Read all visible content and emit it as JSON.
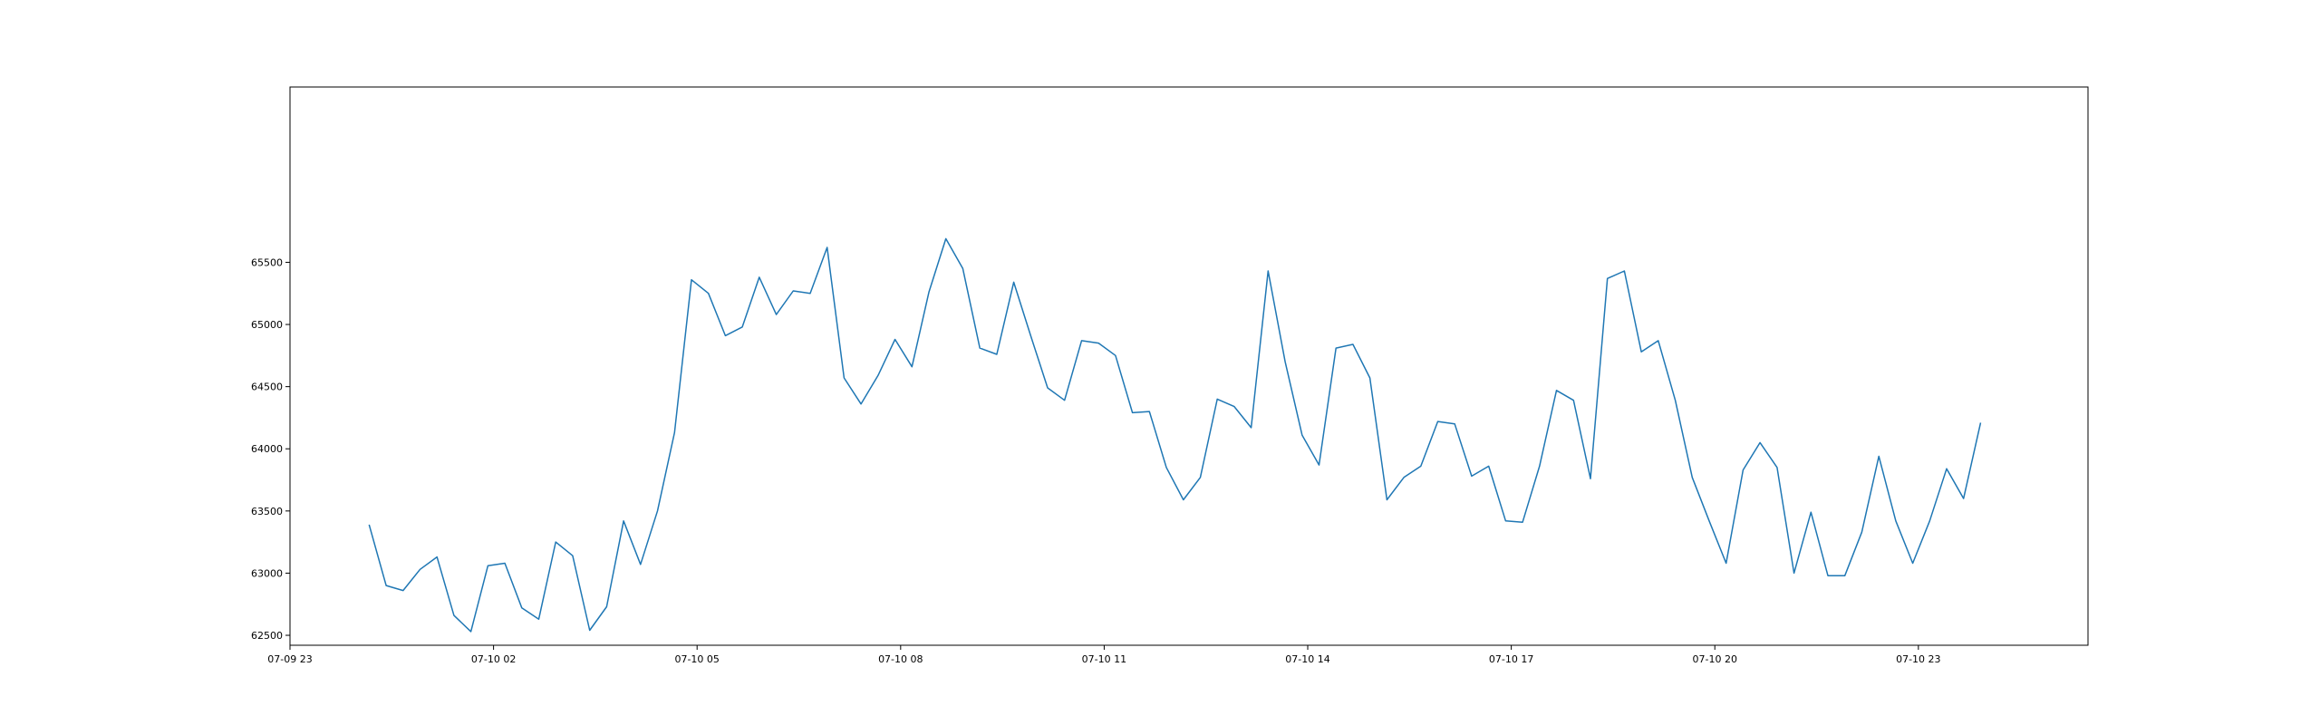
{
  "chart_data": {
    "type": "line",
    "title": "",
    "xlabel": "",
    "ylabel": "",
    "line_color": "#1f77b4",
    "grid": false,
    "legend": "none",
    "x_ticks": [
      "07-09 23",
      "07-10 02",
      "07-10 05",
      "07-10 08",
      "07-10 11",
      "07-10 14",
      "07-10 17",
      "07-10 20",
      "07-10 23"
    ],
    "y_ticks": [
      62500,
      63000,
      63500,
      64000,
      64500,
      65000,
      65500
    ],
    "xlim": [
      "07-09 23:00",
      "07-11 01:30"
    ],
    "ylim": [
      62420,
      66910
    ],
    "x": [
      "07-10 00:10",
      "07-10 00:25",
      "07-10 00:40",
      "07-10 00:55",
      "07-10 01:10",
      "07-10 01:25",
      "07-10 01:40",
      "07-10 01:55",
      "07-10 02:10",
      "07-10 02:25",
      "07-10 02:40",
      "07-10 02:55",
      "07-10 03:10",
      "07-10 03:25",
      "07-10 03:40",
      "07-10 03:55",
      "07-10 04:10",
      "07-10 04:25",
      "07-10 04:40",
      "07-10 04:55",
      "07-10 05:10",
      "07-10 05:25",
      "07-10 05:40",
      "07-10 05:55",
      "07-10 06:10",
      "07-10 06:25",
      "07-10 06:40",
      "07-10 06:55",
      "07-10 07:10",
      "07-10 07:25",
      "07-10 07:40",
      "07-10 07:55",
      "07-10 08:10",
      "07-10 08:25",
      "07-10 08:40",
      "07-10 08:55",
      "07-10 09:10",
      "07-10 09:25",
      "07-10 09:40",
      "07-10 09:55",
      "07-10 10:10",
      "07-10 10:25",
      "07-10 10:40",
      "07-10 10:55",
      "07-10 11:10",
      "07-10 11:25",
      "07-10 11:40",
      "07-10 11:55",
      "07-10 12:10",
      "07-10 12:25",
      "07-10 12:40",
      "07-10 12:55",
      "07-10 13:10",
      "07-10 13:25",
      "07-10 13:40",
      "07-10 13:55",
      "07-10 14:10",
      "07-10 14:25",
      "07-10 14:40",
      "07-10 14:55",
      "07-10 15:10",
      "07-10 15:25",
      "07-10 15:40",
      "07-10 15:55",
      "07-10 16:10",
      "07-10 16:25",
      "07-10 16:40",
      "07-10 16:55",
      "07-10 17:10",
      "07-10 17:25",
      "07-10 17:40",
      "07-10 17:55",
      "07-10 18:10",
      "07-10 18:25",
      "07-10 18:40",
      "07-10 18:55",
      "07-10 19:10",
      "07-10 19:25",
      "07-10 19:40",
      "07-10 19:55",
      "07-10 20:10",
      "07-10 20:25",
      "07-10 20:40",
      "07-10 20:55",
      "07-10 21:10",
      "07-10 21:25",
      "07-10 21:40",
      "07-10 21:55",
      "07-10 22:10",
      "07-10 22:25",
      "07-10 22:40",
      "07-10 22:55",
      "07-10 23:10",
      "07-10 23:25",
      "07-10 23:40",
      "07-10 23:55"
    ],
    "y": [
      63390,
      62900,
      62860,
      63030,
      63130,
      62660,
      62530,
      63060,
      63080,
      62720,
      62630,
      63250,
      63140,
      62540,
      62730,
      63420,
      63070,
      63500,
      64130,
      65360,
      65250,
      64910,
      64980,
      65380,
      65080,
      65270,
      65250,
      65620,
      64570,
      64360,
      64590,
      64880,
      64660,
      65260,
      65690,
      65450,
      64810,
      64760,
      65340,
      64910,
      64490,
      64390,
      64870,
      64850,
      64750,
      64290,
      64300,
      63850,
      63590,
      63770,
      64400,
      64340,
      64170,
      65430,
      64700,
      64110,
      63870,
      64810,
      64840,
      64570,
      63590,
      63770,
      63860,
      64220,
      64200,
      63780,
      63860,
      63420,
      63410,
      63860,
      64470,
      64390,
      63760,
      65370,
      65430,
      64780,
      64870,
      64390,
      63770,
      63420,
      63080,
      63830,
      64050,
      63850,
      63000,
      63490,
      62980,
      62980,
      63330,
      63940,
      63420,
      63080,
      63420,
      63840,
      63600,
      64210
    ]
  }
}
